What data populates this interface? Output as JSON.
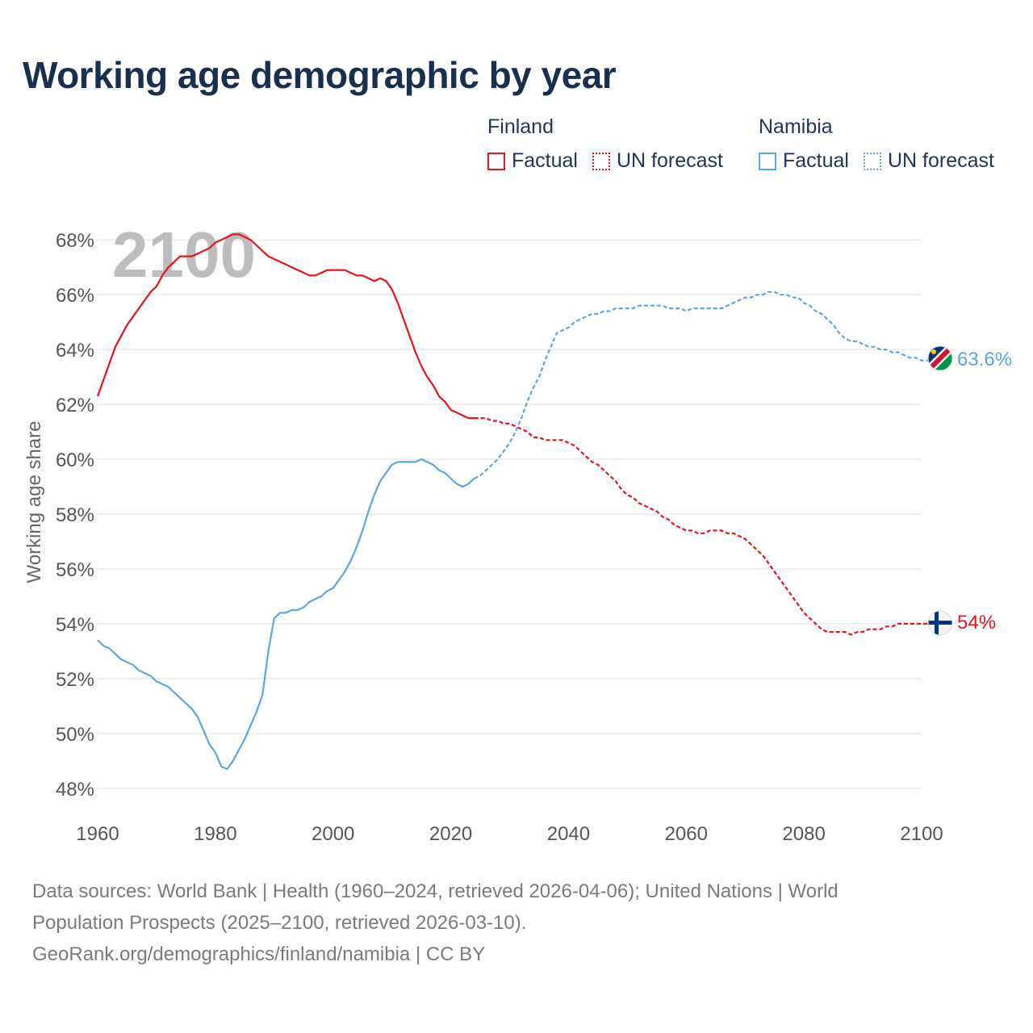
{
  "title": "Working age demographic by year",
  "legend": {
    "groups": [
      {
        "name": "Finland",
        "factual": "Factual",
        "forecast": "UN forecast",
        "color": "#e8141b"
      },
      {
        "name": "Namibia",
        "factual": "Factual",
        "forecast": "UN forecast",
        "color": "#5aa6e6"
      }
    ]
  },
  "footer": {
    "line1": "Data sources: World Bank | Health (1960–2024, retrieved 2026-04-06); United Nations | World",
    "line2": "Population Prospects (2025–2100, retrieved 2026-03-10).",
    "line3": "GeoRank.org/demographics/finland/namibia | CC BY"
  },
  "chart_data": {
    "type": "line",
    "title": "Working age demographic by year",
    "xlabel": "",
    "ylabel": "Working age share",
    "xlim": [
      1960,
      2100
    ],
    "ylim": [
      47.2,
      68.3
    ],
    "x_ticks": [
      1960,
      1980,
      2000,
      2020,
      2040,
      2060,
      2080,
      2100
    ],
    "y_ticks": [
      48,
      50,
      52,
      54,
      56,
      58,
      60,
      62,
      64,
      66,
      68
    ],
    "y_tick_suffix": "%",
    "grid": true,
    "year_watermark": "2100",
    "forecast_start": 2024,
    "series": [
      {
        "name": "Finland",
        "color": "#e8141b",
        "end_label": "54%",
        "factual": [
          [
            1960,
            62.3
          ],
          [
            1961,
            62.9
          ],
          [
            1962,
            63.5
          ],
          [
            1963,
            64.1
          ],
          [
            1964,
            64.5
          ],
          [
            1965,
            64.9
          ],
          [
            1966,
            65.2
          ],
          [
            1967,
            65.5
          ],
          [
            1968,
            65.8
          ],
          [
            1969,
            66.1
          ],
          [
            1970,
            66.3
          ],
          [
            1971,
            66.7
          ],
          [
            1972,
            67.0
          ],
          [
            1973,
            67.2
          ],
          [
            1974,
            67.4
          ],
          [
            1975,
            67.4
          ],
          [
            1976,
            67.4
          ],
          [
            1977,
            67.5
          ],
          [
            1978,
            67.6
          ],
          [
            1979,
            67.7
          ],
          [
            1980,
            67.9
          ],
          [
            1981,
            68.0
          ],
          [
            1982,
            68.1
          ],
          [
            1983,
            68.2
          ],
          [
            1984,
            68.2
          ],
          [
            1985,
            68.1
          ],
          [
            1986,
            68.0
          ],
          [
            1987,
            67.8
          ],
          [
            1988,
            67.6
          ],
          [
            1989,
            67.4
          ],
          [
            1990,
            67.3
          ],
          [
            1991,
            67.2
          ],
          [
            1992,
            67.1
          ],
          [
            1993,
            67.0
          ],
          [
            1994,
            66.9
          ],
          [
            1995,
            66.8
          ],
          [
            1996,
            66.7
          ],
          [
            1997,
            66.7
          ],
          [
            1998,
            66.8
          ],
          [
            1999,
            66.9
          ],
          [
            2000,
            66.9
          ],
          [
            2001,
            66.9
          ],
          [
            2002,
            66.9
          ],
          [
            2003,
            66.8
          ],
          [
            2004,
            66.7
          ],
          [
            2005,
            66.7
          ],
          [
            2006,
            66.6
          ],
          [
            2007,
            66.5
          ],
          [
            2008,
            66.6
          ],
          [
            2009,
            66.5
          ],
          [
            2010,
            66.2
          ],
          [
            2011,
            65.7
          ],
          [
            2012,
            65.1
          ],
          [
            2013,
            64.5
          ],
          [
            2014,
            63.9
          ],
          [
            2015,
            63.4
          ],
          [
            2016,
            63.0
          ],
          [
            2017,
            62.7
          ],
          [
            2018,
            62.3
          ],
          [
            2019,
            62.1
          ],
          [
            2020,
            61.8
          ],
          [
            2021,
            61.7
          ],
          [
            2022,
            61.6
          ],
          [
            2023,
            61.5
          ],
          [
            2024,
            61.5
          ]
        ],
        "forecast": [
          [
            2024,
            61.5
          ],
          [
            2025,
            61.5
          ],
          [
            2026,
            61.5
          ],
          [
            2027,
            61.4
          ],
          [
            2028,
            61.4
          ],
          [
            2029,
            61.3
          ],
          [
            2030,
            61.3
          ],
          [
            2031,
            61.2
          ],
          [
            2032,
            61.1
          ],
          [
            2033,
            61.0
          ],
          [
            2034,
            60.8
          ],
          [
            2035,
            60.8
          ],
          [
            2036,
            60.7
          ],
          [
            2037,
            60.7
          ],
          [
            2038,
            60.7
          ],
          [
            2039,
            60.7
          ],
          [
            2040,
            60.6
          ],
          [
            2041,
            60.5
          ],
          [
            2042,
            60.3
          ],
          [
            2043,
            60.1
          ],
          [
            2044,
            59.9
          ],
          [
            2045,
            59.8
          ],
          [
            2046,
            59.6
          ],
          [
            2047,
            59.4
          ],
          [
            2048,
            59.2
          ],
          [
            2049,
            58.9
          ],
          [
            2050,
            58.7
          ],
          [
            2051,
            58.6
          ],
          [
            2052,
            58.4
          ],
          [
            2053,
            58.3
          ],
          [
            2054,
            58.2
          ],
          [
            2055,
            58.1
          ],
          [
            2056,
            57.9
          ],
          [
            2057,
            57.8
          ],
          [
            2058,
            57.6
          ],
          [
            2059,
            57.5
          ],
          [
            2060,
            57.4
          ],
          [
            2061,
            57.4
          ],
          [
            2062,
            57.3
          ],
          [
            2063,
            57.3
          ],
          [
            2064,
            57.4
          ],
          [
            2065,
            57.4
          ],
          [
            2066,
            57.4
          ],
          [
            2067,
            57.3
          ],
          [
            2068,
            57.3
          ],
          [
            2069,
            57.2
          ],
          [
            2070,
            57.1
          ],
          [
            2071,
            56.9
          ],
          [
            2072,
            56.7
          ],
          [
            2073,
            56.5
          ],
          [
            2074,
            56.2
          ],
          [
            2075,
            55.9
          ],
          [
            2076,
            55.6
          ],
          [
            2077,
            55.3
          ],
          [
            2078,
            55.0
          ],
          [
            2079,
            54.7
          ],
          [
            2080,
            54.4
          ],
          [
            2081,
            54.2
          ],
          [
            2082,
            54.0
          ],
          [
            2083,
            53.8
          ],
          [
            2084,
            53.7
          ],
          [
            2085,
            53.7
          ],
          [
            2086,
            53.7
          ],
          [
            2087,
            53.7
          ],
          [
            2088,
            53.6
          ],
          [
            2089,
            53.7
          ],
          [
            2090,
            53.7
          ],
          [
            2091,
            53.8
          ],
          [
            2092,
            53.8
          ],
          [
            2093,
            53.8
          ],
          [
            2094,
            53.9
          ],
          [
            2095,
            53.9
          ],
          [
            2096,
            54.0
          ],
          [
            2097,
            54.0
          ],
          [
            2098,
            54.0
          ],
          [
            2099,
            54.0
          ],
          [
            2100,
            54.0
          ],
          [
            2101,
            54.0
          ],
          [
            2102,
            54.0
          ],
          [
            2103,
            54.0
          ]
        ]
      },
      {
        "name": "Namibia",
        "color": "#5aa6e6",
        "end_label": "63.6%",
        "factual": [
          [
            1960,
            53.4
          ],
          [
            1961,
            53.2
          ],
          [
            1962,
            53.1
          ],
          [
            1963,
            52.9
          ],
          [
            1964,
            52.7
          ],
          [
            1965,
            52.6
          ],
          [
            1966,
            52.5
          ],
          [
            1967,
            52.3
          ],
          [
            1968,
            52.2
          ],
          [
            1969,
            52.1
          ],
          [
            1970,
            51.9
          ],
          [
            1971,
            51.8
          ],
          [
            1972,
            51.7
          ],
          [
            1973,
            51.5
          ],
          [
            1974,
            51.3
          ],
          [
            1975,
            51.1
          ],
          [
            1976,
            50.9
          ],
          [
            1977,
            50.6
          ],
          [
            1978,
            50.1
          ],
          [
            1979,
            49.6
          ],
          [
            1980,
            49.3
          ],
          [
            1981,
            48.8
          ],
          [
            1982,
            48.7
          ],
          [
            1983,
            49.0
          ],
          [
            1984,
            49.4
          ],
          [
            1985,
            49.8
          ],
          [
            1986,
            50.3
          ],
          [
            1987,
            50.8
          ],
          [
            1988,
            51.4
          ],
          [
            1989,
            53.0
          ],
          [
            1990,
            54.2
          ],
          [
            1991,
            54.4
          ],
          [
            1992,
            54.4
          ],
          [
            1993,
            54.5
          ],
          [
            1994,
            54.5
          ],
          [
            1995,
            54.6
          ],
          [
            1996,
            54.8
          ],
          [
            1997,
            54.9
          ],
          [
            1998,
            55.0
          ],
          [
            1999,
            55.2
          ],
          [
            2000,
            55.3
          ],
          [
            2001,
            55.6
          ],
          [
            2002,
            55.9
          ],
          [
            2003,
            56.3
          ],
          [
            2004,
            56.8
          ],
          [
            2005,
            57.4
          ],
          [
            2006,
            58.1
          ],
          [
            2007,
            58.7
          ],
          [
            2008,
            59.2
          ],
          [
            2009,
            59.5
          ],
          [
            2010,
            59.8
          ],
          [
            2011,
            59.9
          ],
          [
            2012,
            59.9
          ],
          [
            2013,
            59.9
          ],
          [
            2014,
            59.9
          ],
          [
            2015,
            60.0
          ],
          [
            2016,
            59.9
          ],
          [
            2017,
            59.8
          ],
          [
            2018,
            59.6
          ],
          [
            2019,
            59.5
          ],
          [
            2020,
            59.3
          ],
          [
            2021,
            59.1
          ],
          [
            2022,
            59.0
          ],
          [
            2023,
            59.1
          ],
          [
            2024,
            59.3
          ]
        ],
        "forecast": [
          [
            2024,
            59.3
          ],
          [
            2025,
            59.4
          ],
          [
            2026,
            59.6
          ],
          [
            2027,
            59.8
          ],
          [
            2028,
            60.0
          ],
          [
            2029,
            60.3
          ],
          [
            2030,
            60.6
          ],
          [
            2031,
            61.0
          ],
          [
            2032,
            61.5
          ],
          [
            2033,
            62.1
          ],
          [
            2034,
            62.6
          ],
          [
            2035,
            63.0
          ],
          [
            2036,
            63.6
          ],
          [
            2037,
            64.1
          ],
          [
            2038,
            64.6
          ],
          [
            2039,
            64.7
          ],
          [
            2040,
            64.8
          ],
          [
            2041,
            65.0
          ],
          [
            2042,
            65.1
          ],
          [
            2043,
            65.2
          ],
          [
            2044,
            65.3
          ],
          [
            2045,
            65.3
          ],
          [
            2046,
            65.4
          ],
          [
            2047,
            65.4
          ],
          [
            2048,
            65.5
          ],
          [
            2049,
            65.5
          ],
          [
            2050,
            65.5
          ],
          [
            2051,
            65.5
          ],
          [
            2052,
            65.6
          ],
          [
            2053,
            65.6
          ],
          [
            2054,
            65.6
          ],
          [
            2055,
            65.6
          ],
          [
            2056,
            65.6
          ],
          [
            2057,
            65.5
          ],
          [
            2058,
            65.5
          ],
          [
            2059,
            65.5
          ],
          [
            2060,
            65.4
          ],
          [
            2061,
            65.5
          ],
          [
            2062,
            65.5
          ],
          [
            2063,
            65.5
          ],
          [
            2064,
            65.5
          ],
          [
            2065,
            65.5
          ],
          [
            2066,
            65.5
          ],
          [
            2067,
            65.6
          ],
          [
            2068,
            65.7
          ],
          [
            2069,
            65.8
          ],
          [
            2070,
            65.9
          ],
          [
            2071,
            65.9
          ],
          [
            2072,
            66.0
          ],
          [
            2073,
            66.0
          ],
          [
            2074,
            66.1
          ],
          [
            2075,
            66.1
          ],
          [
            2076,
            66.0
          ],
          [
            2077,
            66.0
          ],
          [
            2078,
            65.9
          ],
          [
            2079,
            65.9
          ],
          [
            2080,
            65.7
          ],
          [
            2081,
            65.6
          ],
          [
            2082,
            65.4
          ],
          [
            2083,
            65.3
          ],
          [
            2084,
            65.1
          ],
          [
            2085,
            64.9
          ],
          [
            2086,
            64.6
          ],
          [
            2087,
            64.4
          ],
          [
            2088,
            64.3
          ],
          [
            2089,
            64.3
          ],
          [
            2090,
            64.2
          ],
          [
            2091,
            64.1
          ],
          [
            2092,
            64.1
          ],
          [
            2093,
            64.0
          ],
          [
            2094,
            64.0
          ],
          [
            2095,
            63.9
          ],
          [
            2096,
            63.9
          ],
          [
            2097,
            63.8
          ],
          [
            2098,
            63.7
          ],
          [
            2099,
            63.7
          ],
          [
            2100,
            63.6
          ],
          [
            2101,
            63.6
          ],
          [
            2102,
            63.6
          ],
          [
            2103,
            63.6
          ]
        ]
      }
    ]
  }
}
